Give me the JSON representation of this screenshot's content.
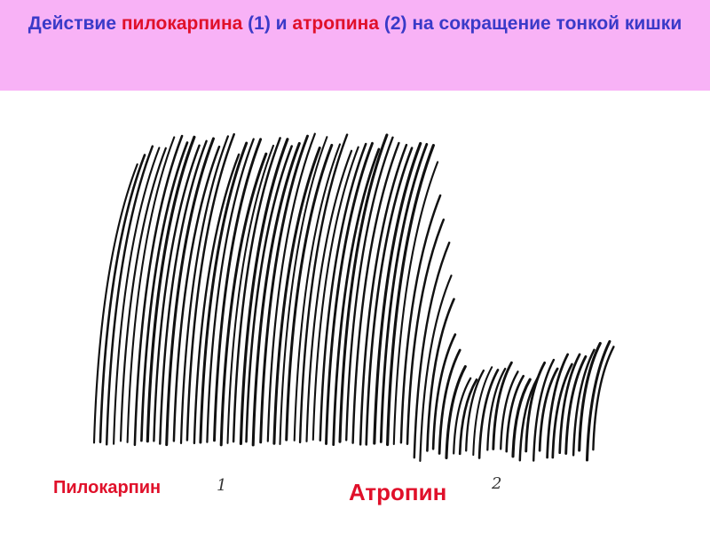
{
  "header": {
    "title_parts": [
      "Действие ",
      "пилокарпина",
      " (1) и ",
      "атропина",
      " (2) на сокращение тонкой кишки"
    ]
  },
  "figure": {
    "label_1": "Пилокарпин",
    "mark_1": "1",
    "label_2": "Атропин",
    "mark_2": "2"
  }
}
